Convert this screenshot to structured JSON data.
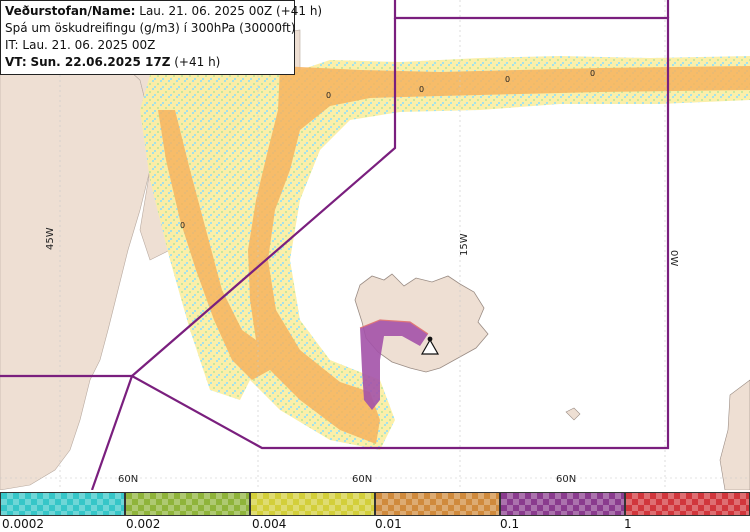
{
  "info": {
    "name_key": "Veðurstofan/Name:",
    "name_value": "Lau. 21. 06. 2025 00Z (+41 h)",
    "forecast_desc": "Spá um öskudreifingu (g/m3) í 300hPa (30000ft)",
    "it_line": "IT: Lau. 21. 06. 2025 00Z",
    "vt_key": "VT:",
    "vt_bold": "Sun. 22.06.2025 17Z",
    "vt_rest": "(+41 h)"
  },
  "graticule": {
    "lon_labels": [
      "45W",
      "15W",
      "0W"
    ],
    "lat_labels": [
      "60N",
      "60N",
      "60N"
    ]
  },
  "contour_labels": [
    "0",
    "0",
    "0",
    "0",
    "0"
  ],
  "legend": {
    "thresholds": [
      "0.0002",
      "0.002",
      "0.004",
      "0.01",
      "0.1",
      "1"
    ],
    "colors": [
      "#36c6c8",
      "#8fb43a",
      "#d3cf3a",
      "#d08a3c",
      "#8a3b8e",
      "#d1363c"
    ]
  },
  "colors": {
    "land": "#eedfd3",
    "sea": "#ffffff",
    "boundary": "#7a1f7e",
    "ash_light": "#f7e49a",
    "ash_mid": "#f6b35e",
    "ash_high": "#a352a8"
  },
  "icons": [
    "volcano-icon"
  ]
}
